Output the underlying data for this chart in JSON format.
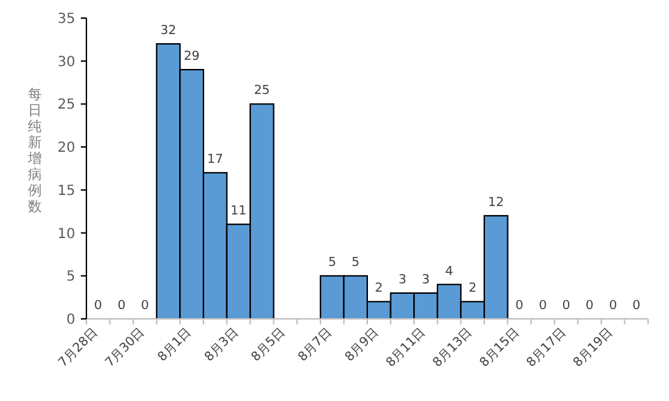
{
  "chart_data": {
    "type": "bar",
    "ylabel": "每日纯新增病例数",
    "categories": [
      "7月28日",
      null,
      "7月30日",
      null,
      "8月1日",
      null,
      "8月3日",
      null,
      "8月5日",
      null,
      "8月7日",
      null,
      "8月9日",
      null,
      "8月11日",
      null,
      "8月13日",
      null,
      "8月15日",
      null,
      "8月17日",
      null,
      "8月19日",
      null
    ],
    "values": [
      0,
      0,
      0,
      32,
      29,
      17,
      11,
      25,
      null,
      null,
      5,
      5,
      2,
      3,
      3,
      4,
      2,
      12,
      0,
      0,
      0,
      0,
      0,
      0
    ],
    "color": "#5b9bd5",
    "ylim": [
      0,
      35
    ],
    "yticks": [
      0,
      5,
      10,
      15,
      20,
      25,
      30,
      35
    ],
    "data_labels": true,
    "grid": false
  }
}
